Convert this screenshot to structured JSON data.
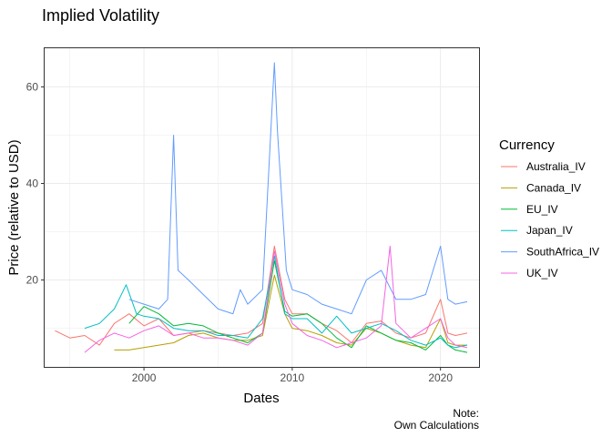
{
  "chart_data": {
    "type": "line",
    "title": "Implied Volatility",
    "xlabel": "Dates",
    "ylabel": "Price (relative to USD)",
    "xlim": [
      1993.3,
      2022.6
    ],
    "ylim": [
      2.0,
      68.0
    ],
    "x_ticks": [
      2000,
      2010,
      2020
    ],
    "x_tick_labels": [
      "2000",
      "2010",
      "2020"
    ],
    "y_ticks": [
      20,
      40,
      60
    ],
    "y_tick_labels": [
      "20",
      "40",
      "60"
    ],
    "grid": true,
    "legend": {
      "title": "Currency",
      "position": "right"
    },
    "caption": [
      "Note:",
      "Own Calculations"
    ],
    "series": [
      {
        "name": "Australia_IV",
        "color": "#F8766D",
        "x": [
          1994.0,
          1995.0,
          1996.0,
          1997.0,
          1998.0,
          1999.0,
          2000.0,
          2001.0,
          2002.0,
          2003.0,
          2004.0,
          2005.0,
          2006.0,
          2007.0,
          2008.0,
          2008.8,
          2009.5,
          2010.0,
          2011.0,
          2012.0,
          2013.0,
          2014.0,
          2015.0,
          2016.0,
          2017.0,
          2018.0,
          2019.0,
          2020.0,
          2020.5,
          2021.0,
          2021.8
        ],
        "y": [
          9.5,
          8.0,
          8.5,
          6.5,
          11.0,
          13.0,
          10.5,
          12.0,
          8.5,
          9.0,
          9.5,
          9.0,
          8.5,
          9.0,
          11.0,
          27.0,
          16.0,
          13.0,
          13.0,
          11.0,
          9.5,
          7.0,
          11.0,
          11.5,
          9.0,
          8.0,
          9.0,
          16.0,
          9.0,
          8.5,
          9.0
        ]
      },
      {
        "name": "Canada_IV",
        "color": "#B79F00",
        "x": [
          1998.0,
          1999.0,
          2000.0,
          2001.0,
          2002.0,
          2003.0,
          2004.0,
          2005.0,
          2006.0,
          2007.0,
          2008.0,
          2008.8,
          2009.5,
          2010.0,
          2011.0,
          2012.0,
          2013.0,
          2014.0,
          2015.0,
          2016.0,
          2017.0,
          2018.0,
          2019.0,
          2020.0,
          2020.5,
          2021.0,
          2021.8
        ],
        "y": [
          5.5,
          5.5,
          6.0,
          6.5,
          7.0,
          8.5,
          9.0,
          8.0,
          7.5,
          7.5,
          8.5,
          21.0,
          13.0,
          10.0,
          9.5,
          8.5,
          7.0,
          6.5,
          10.0,
          9.0,
          7.5,
          6.5,
          6.0,
          12.0,
          7.0,
          6.5,
          6.5
        ]
      },
      {
        "name": "EU_IV",
        "color": "#00BA38",
        "x": [
          1999.0,
          2000.0,
          2001.0,
          2002.0,
          2003.0,
          2004.0,
          2005.0,
          2006.0,
          2007.0,
          2008.0,
          2008.8,
          2009.5,
          2010.0,
          2011.0,
          2012.0,
          2013.0,
          2014.0,
          2015.0,
          2016.0,
          2017.0,
          2018.0,
          2019.0,
          2020.0,
          2020.5,
          2021.0,
          2021.8
        ],
        "y": [
          11.0,
          14.5,
          13.0,
          10.5,
          11.0,
          10.5,
          9.0,
          8.0,
          7.0,
          9.0,
          24.0,
          13.5,
          12.5,
          13.0,
          11.0,
          8.0,
          6.0,
          10.5,
          9.0,
          7.5,
          7.0,
          5.5,
          8.5,
          6.5,
          5.5,
          5.0
        ]
      },
      {
        "name": "Japan_IV",
        "color": "#00BFC4",
        "x": [
          1996.0,
          1997.0,
          1998.0,
          1998.8,
          1999.5,
          2000.0,
          2001.0,
          2002.0,
          2003.0,
          2004.0,
          2005.0,
          2006.0,
          2007.0,
          2008.0,
          2008.8,
          2009.5,
          2010.0,
          2011.0,
          2012.0,
          2013.0,
          2014.0,
          2015.0,
          2016.0,
          2017.0,
          2018.0,
          2019.0,
          2020.0,
          2020.5,
          2021.0,
          2021.8
        ],
        "y": [
          10.0,
          11.0,
          14.0,
          19.0,
          13.0,
          12.5,
          12.0,
          10.0,
          9.5,
          9.5,
          8.5,
          8.5,
          8.0,
          12.0,
          25.0,
          13.0,
          12.0,
          12.0,
          9.0,
          12.5,
          9.0,
          10.0,
          11.0,
          9.5,
          7.5,
          6.5,
          8.0,
          6.5,
          6.0,
          6.5
        ]
      },
      {
        "name": "SouthAfrica_IV",
        "color": "#619CFF",
        "x": [
          1999.0,
          2000.0,
          2001.0,
          2001.6,
          2002.0,
          2002.3,
          2003.0,
          2004.0,
          2005.0,
          2006.0,
          2006.5,
          2007.0,
          2008.0,
          2008.8,
          2009.0,
          2009.6,
          2010.0,
          2011.0,
          2012.0,
          2013.0,
          2014.0,
          2015.0,
          2016.0,
          2017.0,
          2018.0,
          2019.0,
          2020.0,
          2020.5,
          2021.0,
          2021.8
        ],
        "y": [
          16.0,
          15.0,
          14.0,
          16.0,
          50.0,
          22.0,
          20.0,
          17.0,
          14.0,
          13.0,
          18.0,
          15.0,
          18.0,
          65.0,
          51.0,
          22.0,
          18.0,
          17.0,
          15.0,
          14.0,
          13.0,
          20.0,
          22.0,
          16.0,
          16.0,
          17.0,
          27.0,
          16.0,
          15.0,
          15.5
        ]
      },
      {
        "name": "UK_IV",
        "color": "#F564E3",
        "x": [
          1996.0,
          1997.0,
          1998.0,
          1999.0,
          2000.0,
          2001.0,
          2002.0,
          2003.0,
          2004.0,
          2005.0,
          2006.0,
          2007.0,
          2008.0,
          2008.8,
          2009.5,
          2010.0,
          2011.0,
          2012.0,
          2013.0,
          2014.0,
          2015.0,
          2016.0,
          2016.6,
          2017.0,
          2018.0,
          2019.0,
          2020.0,
          2020.5,
          2021.0,
          2021.8
        ],
        "y": [
          5.0,
          7.5,
          9.0,
          8.0,
          9.5,
          10.5,
          8.5,
          9.0,
          8.0,
          8.0,
          7.5,
          6.5,
          9.0,
          26.0,
          15.0,
          11.0,
          8.5,
          7.5,
          6.0,
          7.0,
          8.0,
          10.5,
          27.0,
          11.0,
          8.0,
          10.0,
          12.0,
          8.0,
          6.5,
          6.0
        ]
      }
    ]
  }
}
